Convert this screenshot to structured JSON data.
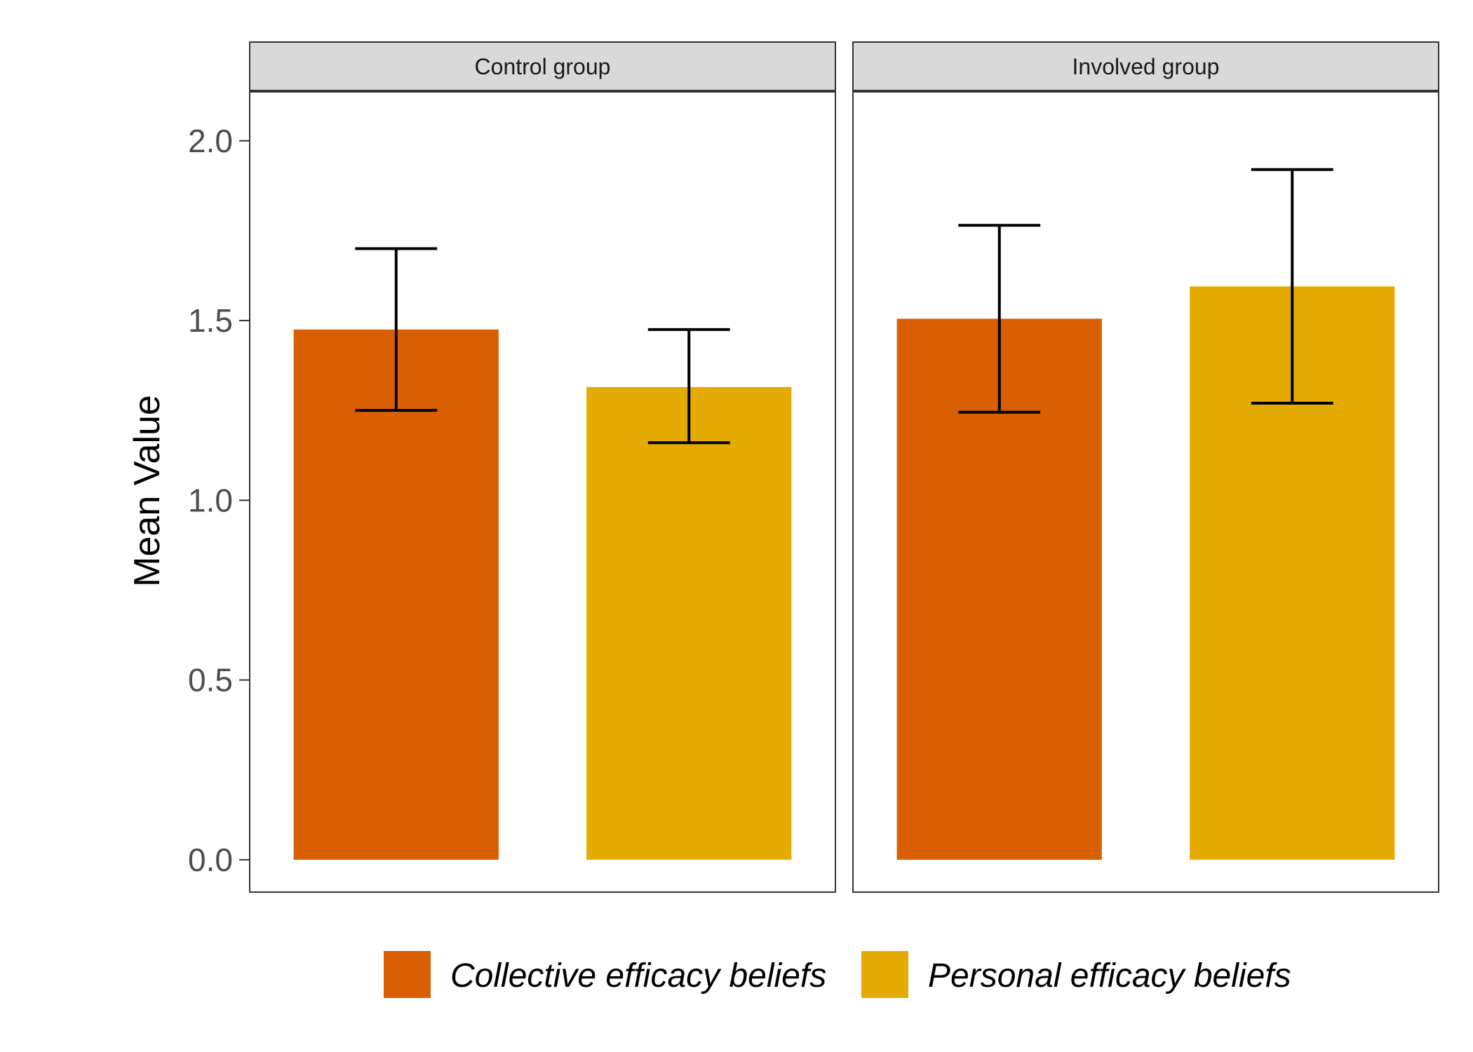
{
  "chart_data": {
    "type": "bar",
    "facets": [
      "Control group",
      "Involved group"
    ],
    "series": [
      {
        "name": "Collective efficacy beliefs",
        "color": "#D95F02",
        "values": [
          1.475,
          1.505
        ],
        "error_low": [
          1.25,
          1.245
        ],
        "error_high": [
          1.7,
          1.765
        ]
      },
      {
        "name": "Personal efficacy beliefs",
        "color": "#E6AB02",
        "values": [
          1.315,
          1.595
        ],
        "error_low": [
          1.16,
          1.27
        ],
        "error_high": [
          1.475,
          1.92
        ]
      }
    ],
    "title": "",
    "xlabel": "",
    "ylabel": "Mean Value",
    "ylim": [
      -0.09,
      2.14
    ],
    "yticks": [
      0.0,
      0.5,
      1.0,
      1.5,
      2.0
    ],
    "ytick_labels": [
      "0.0",
      "0.5",
      "1.0",
      "1.5",
      "2.0"
    ],
    "legend_position": "bottom",
    "grid": false
  }
}
